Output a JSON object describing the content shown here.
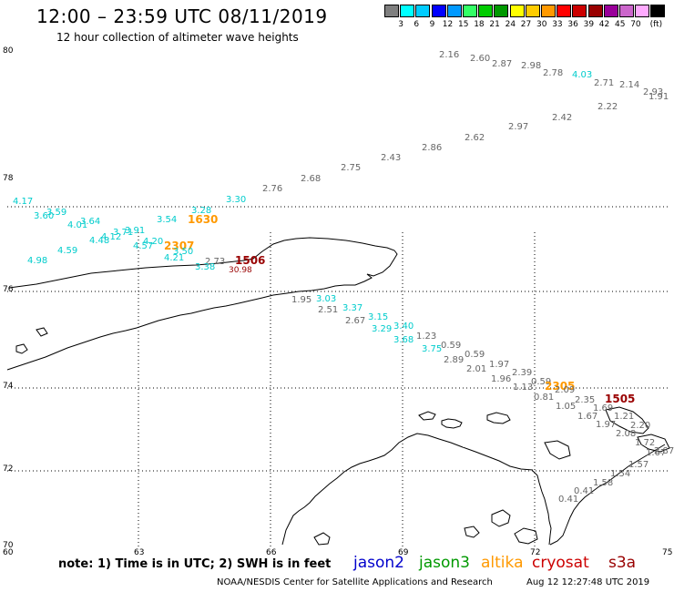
{
  "header": {
    "title": "12:00 – 23:59 UTC 08/11/2019",
    "subtitle": "12 hour collection of altimeter wave heights"
  },
  "legend": {
    "unit": "(ft)",
    "items": [
      {
        "color": "#7f7f7f",
        "label": ""
      },
      {
        "color": "#00ffff",
        "label": "3"
      },
      {
        "color": "#00ccff",
        "label": "6"
      },
      {
        "color": "#0000ff",
        "label": "9"
      },
      {
        "color": "#0099ff",
        "label": "12"
      },
      {
        "color": "#33ff66",
        "label": "15"
      },
      {
        "color": "#00cc00",
        "label": "18"
      },
      {
        "color": "#009900",
        "label": "21"
      },
      {
        "color": "#ffff00",
        "label": "24"
      },
      {
        "color": "#ffcc00",
        "label": "27"
      },
      {
        "color": "#ff9900",
        "label": "30"
      },
      {
        "color": "#ff0000",
        "label": "33"
      },
      {
        "color": "#cc0000",
        "label": "36"
      },
      {
        "color": "#990000",
        "label": "39"
      },
      {
        "color": "#990099",
        "label": "42"
      },
      {
        "color": "#cc66cc",
        "label": "45"
      },
      {
        "color": "#ffaaff",
        "label": "70"
      },
      {
        "color": "#000000",
        "label": ""
      }
    ]
  },
  "axes": {
    "lat_labels": [
      "80",
      "78",
      "76",
      "74",
      "72",
      "70"
    ],
    "lon_labels": [
      "60",
      "63",
      "66",
      "69",
      "72",
      "75"
    ]
  },
  "measurements": [
    {
      "v": "2.16",
      "sat": "jason3"
    },
    {
      "v": "2.60",
      "sat": "jason3"
    },
    {
      "v": "2.87",
      "sat": "jason3"
    },
    {
      "v": "2.98",
      "sat": "jason3"
    },
    {
      "v": "2.78",
      "sat": "jason3"
    },
    {
      "v": "4.03",
      "sat": "jason2"
    },
    {
      "v": "2.71",
      "sat": "jason3"
    },
    {
      "v": "2.14",
      "sat": "jason3"
    },
    {
      "v": "2.93",
      "sat": "jason3"
    },
    {
      "v": "1.91",
      "sat": "jason3"
    },
    {
      "v": "2.22",
      "sat": "jason3"
    },
    {
      "v": "2.42",
      "sat": "jason3"
    },
    {
      "v": "2.97",
      "sat": "jason3"
    },
    {
      "v": "2.62",
      "sat": "jason3"
    },
    {
      "v": "2.86",
      "sat": "jason3"
    },
    {
      "v": "2.43",
      "sat": "jason3"
    },
    {
      "v": "2.75",
      "sat": "jason3"
    },
    {
      "v": "2.68",
      "sat": "jason3"
    },
    {
      "v": "2.76",
      "sat": "jason3"
    },
    {
      "v": "3.30",
      "sat": "jason2"
    },
    {
      "v": "3.28",
      "sat": "jason2"
    },
    {
      "v": "1630",
      "sat": "altika"
    },
    {
      "v": "3.54",
      "sat": "jason2"
    },
    {
      "v": "4.17",
      "sat": "jason2"
    },
    {
      "v": "3.59",
      "sat": "jason2"
    },
    {
      "v": "3.60",
      "sat": "jason2"
    },
    {
      "v": "3.64",
      "sat": "jason2"
    },
    {
      "v": "4.01",
      "sat": "jason2"
    },
    {
      "v": "3.91",
      "sat": "jason2"
    },
    {
      "v": "3.71",
      "sat": "jason2"
    },
    {
      "v": "4.12",
      "sat": "jason2"
    },
    {
      "v": "4.48",
      "sat": "jason2"
    },
    {
      "v": "4.20",
      "sat": "jason2"
    },
    {
      "v": "4.57",
      "sat": "jason2"
    },
    {
      "v": "4.59",
      "sat": "jason2"
    },
    {
      "v": "2307",
      "sat": "altika"
    },
    {
      "v": "3.50",
      "sat": "jason2"
    },
    {
      "v": "4.21",
      "sat": "jason2"
    },
    {
      "v": "4.98",
      "sat": "jason2"
    },
    {
      "v": "2.73",
      "sat": "jason3"
    },
    {
      "v": "1506",
      "sat": "cryosat"
    },
    {
      "v": "3.38",
      "sat": "jason2"
    },
    {
      "v": "30.98",
      "sat": "cryosat"
    },
    {
      "v": "1.95",
      "sat": "jason3"
    },
    {
      "v": "3.03",
      "sat": "jason2"
    },
    {
      "v": "2.51",
      "sat": "jason3"
    },
    {
      "v": "3.37",
      "sat": "jason2"
    },
    {
      "v": "2.67",
      "sat": "jason3"
    },
    {
      "v": "3.15",
      "sat": "jason2"
    },
    {
      "v": "3.29",
      "sat": "jason2"
    },
    {
      "v": "3.40",
      "sat": "jason2"
    },
    {
      "v": "1.23",
      "sat": "jason3"
    },
    {
      "v": "3.68",
      "sat": "jason2"
    },
    {
      "v": "0.59",
      "sat": "jason3"
    },
    {
      "v": "3.75",
      "sat": "jason2"
    },
    {
      "v": "0.59",
      "sat": "jason3"
    },
    {
      "v": "2.89",
      "sat": "jason3"
    },
    {
      "v": "1.97",
      "sat": "jason3"
    },
    {
      "v": "2.01",
      "sat": "jason3"
    },
    {
      "v": "2.39",
      "sat": "jason3"
    },
    {
      "v": "1.96",
      "sat": "jason3"
    },
    {
      "v": "0.59",
      "sat": "jason3"
    },
    {
      "v": "2305",
      "sat": "altika"
    },
    {
      "v": "1.13",
      "sat": "jason3"
    },
    {
      "v": "2.09",
      "sat": "jason3"
    },
    {
      "v": "0.81",
      "sat": "jason3"
    },
    {
      "v": "2.35",
      "sat": "jason3"
    },
    {
      "v": "1505",
      "sat": "cryosat"
    },
    {
      "v": "1.05",
      "sat": "jason3"
    },
    {
      "v": "1.69",
      "sat": "jason3"
    },
    {
      "v": "1.67",
      "sat": "jason3"
    },
    {
      "v": "1.21",
      "sat": "jason3"
    },
    {
      "v": "1.97",
      "sat": "jason3"
    },
    {
      "v": "2.20",
      "sat": "jason3"
    },
    {
      "v": "2.08",
      "sat": "jason3"
    },
    {
      "v": "1.72",
      "sat": "jason3"
    },
    {
      "v": "1.67",
      "sat": "jason3"
    },
    {
      "v": "2.87",
      "sat": "jason3"
    },
    {
      "v": "1.57",
      "sat": "jason3"
    },
    {
      "v": "1.54",
      "sat": "jason3"
    },
    {
      "v": "1.58",
      "sat": "jason3"
    },
    {
      "v": "0.41",
      "sat": "jason3"
    },
    {
      "v": "0.41",
      "sat": "jason3"
    }
  ],
  "colors": {
    "jason2": "#00cccc",
    "jason3": "#666666",
    "altika": "#ff9900",
    "cryosat": "#990000",
    "coast": "#000000",
    "grid": "#000000"
  },
  "footer": {
    "note": "note:  1) Time is in UTC;  2) SWH is in feet",
    "satellites": [
      {
        "label": "jason2",
        "color": "#0000cc"
      },
      {
        "label": "jason3",
        "color": "#009900"
      },
      {
        "label": "altika",
        "color": "#ff9900"
      },
      {
        "label": "cryosat",
        "color": "#cc0000"
      },
      {
        "label": "s3a",
        "color": "#990000"
      }
    ],
    "credit": "NOAA/NESDIS Center for Satellite Applications and Research",
    "timestamp": "Aug 12 12:27:48 UTC 2019"
  }
}
